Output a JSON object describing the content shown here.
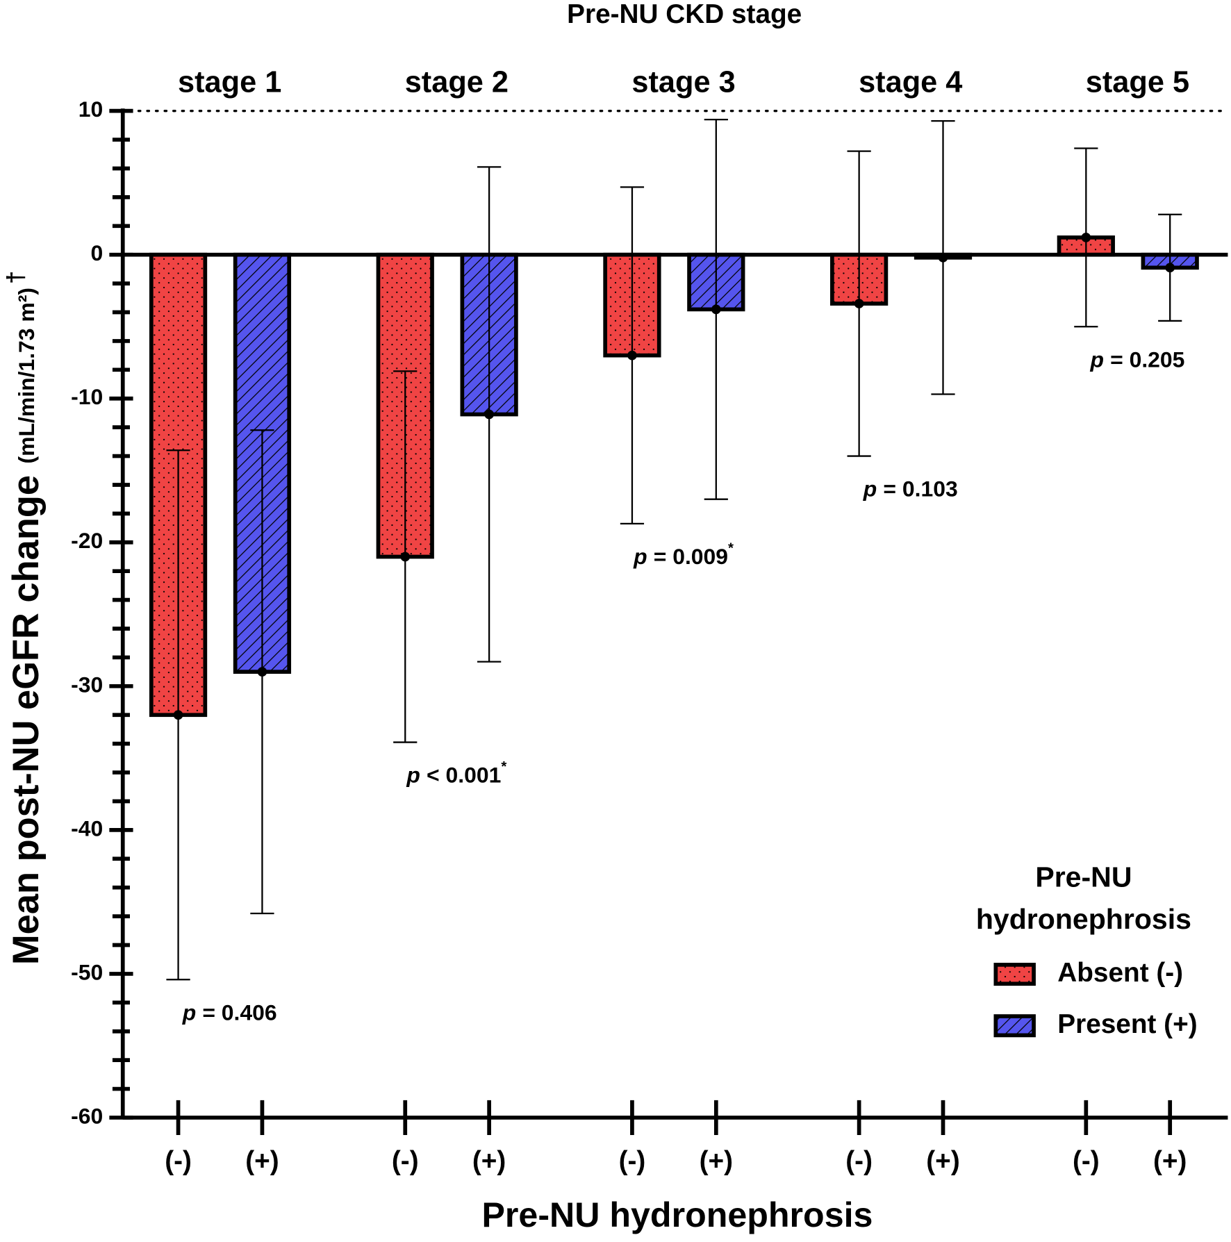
{
  "chart_data": {
    "type": "bar",
    "title": "Pre-NU CKD stage",
    "groups": [
      "stage 1",
      "stage 2",
      "stage 3",
      "stage 4",
      "stage 5"
    ],
    "x_label": "Pre-NU hydronephrosis",
    "y_label": "Mean post-NU eGFR change",
    "y_label_unit": "(mL/min/1.73 m²)",
    "y_label_mark": "†",
    "ylim": [
      -60,
      10
    ],
    "yticks": [
      10,
      0,
      -10,
      -20,
      -30,
      -40,
      -50,
      -60
    ],
    "legend_title": [
      "Pre-NU",
      "hydronephrosis"
    ],
    "legend_position": "lower right",
    "series": [
      {
        "name": "Absent (-)",
        "tick_label": "(-)",
        "color": "#f04444",
        "pattern": "dots",
        "values": [
          -32.0,
          -21.0,
          -7.0,
          -3.4,
          1.2
        ],
        "errors": [
          18.4,
          12.9,
          11.7,
          10.6,
          6.2
        ]
      },
      {
        "name": "Present (+)",
        "tick_label": "(+)",
        "color": "#5555ee",
        "pattern": "hatch",
        "values": [
          -29.0,
          -11.1,
          -3.8,
          -0.2,
          -0.9
        ],
        "errors": [
          16.8,
          17.2,
          13.2,
          9.5,
          3.7
        ]
      }
    ],
    "annotations": [
      {
        "italic": "p",
        "text": "= 0.406"
      },
      {
        "italic": "p",
        "text": "< 0.001",
        "sup": "*"
      },
      {
        "italic": "p",
        "text": "= 0.009",
        "sup": "*"
      },
      {
        "italic": "p",
        "text": "= 0.103"
      },
      {
        "italic": "p",
        "text": "= 0.205"
      }
    ]
  }
}
